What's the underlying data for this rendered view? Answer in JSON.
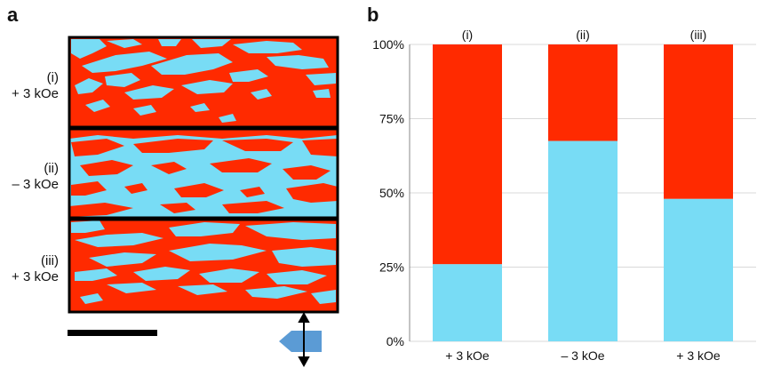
{
  "panel_a": {
    "letter": "a",
    "rows": [
      {
        "index_label": "(i)",
        "field_label": "+ 3 kOe"
      },
      {
        "index_label": "(ii)",
        "field_label": "– 3 kOe"
      },
      {
        "index_label": "(iii)",
        "field_label": "+ 3 kOe"
      }
    ],
    "colors": {
      "red": "#ff2a00",
      "cyan": "#78dcf5",
      "frame": "#000000",
      "arrow_fill": "#5b9bd5"
    }
  },
  "chart_data": {
    "type": "bar",
    "stacked": true,
    "panel_letter": "b",
    "categories": [
      "+ 3 kOe",
      "– 3 kOe",
      "+ 3 kOe"
    ],
    "top_labels": [
      "(i)",
      "(ii)",
      "(iii)"
    ],
    "series": [
      {
        "values": [
          26,
          67.5,
          48
        ],
        "color": "#78dcf5"
      },
      {
        "values": [
          74,
          32.5,
          52
        ],
        "color": "#ff2a00"
      }
    ],
    "yticks": [
      "0%",
      "25%",
      "50%",
      "75%",
      "100%"
    ],
    "ylim": [
      0,
      100
    ],
    "grid": true
  }
}
